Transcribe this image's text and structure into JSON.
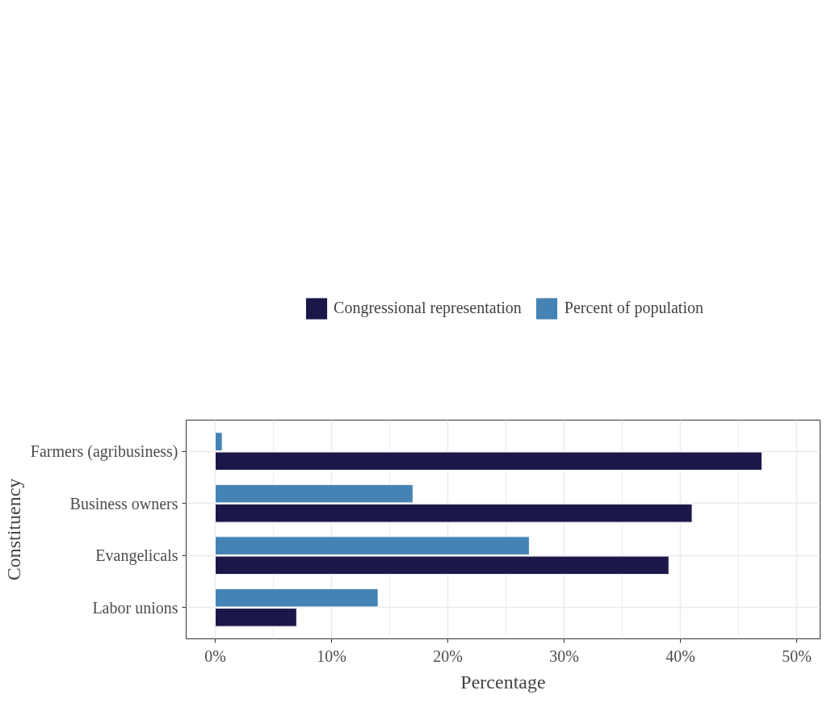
{
  "chart_data": {
    "type": "bar",
    "orientation": "horizontal",
    "xlabel": "Percentage",
    "ylabel": "Constituency",
    "categories": [
      "Farmers (agribusiness)",
      "Business owners",
      "Evangelicals",
      "Labor unions"
    ],
    "series": [
      {
        "name": "Congressional representation",
        "color": "#1b1849",
        "values": [
          47,
          41,
          39,
          7
        ]
      },
      {
        "name": "Percent of population",
        "color": "#4583b4",
        "values": [
          0.6,
          17,
          27,
          14
        ]
      }
    ],
    "xlim": [
      -2.5,
      52
    ],
    "xticks": [
      {
        "value": 0,
        "label": "0%"
      },
      {
        "value": 10,
        "label": "10%"
      },
      {
        "value": 20,
        "label": "20%"
      },
      {
        "value": 30,
        "label": "30%"
      },
      {
        "value": 40,
        "label": "40%"
      },
      {
        "value": 50,
        "label": "50%"
      }
    ],
    "grid": true,
    "legend": "top"
  }
}
